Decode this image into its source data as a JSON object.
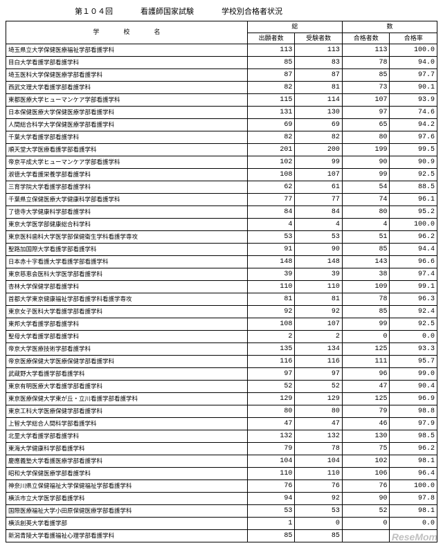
{
  "header": {
    "title1": "第１０４回",
    "title2": "看護師国家試験",
    "title3": "学校別合格者状況"
  },
  "columns": {
    "school_top": "学",
    "school_mid": "校",
    "school_name": "名",
    "group1": "総",
    "group2": "数",
    "c1": "出願者数",
    "c2": "受験者数",
    "c3": "合格者数",
    "c4": "合格率"
  },
  "rows": [
    {
      "name": "埼玉県立大学保健医療福祉学部看護学科",
      "a": "113",
      "b": "113",
      "c": "113",
      "d": "100.0"
    },
    {
      "name": "目白大学看護学部看護学科",
      "a": "85",
      "b": "83",
      "c": "78",
      "d": "94.0"
    },
    {
      "name": "埼玉医科大学保健医療学部看護学科",
      "a": "87",
      "b": "87",
      "c": "85",
      "d": "97.7"
    },
    {
      "name": "西武文理大学看護学部看護学科",
      "a": "82",
      "b": "81",
      "c": "73",
      "d": "90.1"
    },
    {
      "name": "東都医療大学ヒューマンケア学部看護学科",
      "a": "115",
      "b": "114",
      "c": "107",
      "d": "93.9"
    },
    {
      "name": "日本保健医療大学保健医療学部看護学科",
      "a": "131",
      "b": "130",
      "c": "97",
      "d": "74.6"
    },
    {
      "name": "人間総合科学大学保健医療学部看護学科",
      "a": "69",
      "b": "69",
      "c": "65",
      "d": "94.2"
    },
    {
      "name": "千葉大学看護学部看護学科",
      "a": "82",
      "b": "82",
      "c": "80",
      "d": "97.6"
    },
    {
      "name": "順天堂大学医療看護学部看護学科",
      "a": "201",
      "b": "200",
      "c": "199",
      "d": "99.5"
    },
    {
      "name": "帝京平成大学ヒューマンケア学部看護学科",
      "a": "102",
      "b": "99",
      "c": "90",
      "d": "90.9"
    },
    {
      "name": "淑徳大学看護栄養学部看護学科",
      "a": "108",
      "b": "107",
      "c": "99",
      "d": "92.5"
    },
    {
      "name": "三育学院大学看護学部看護学科",
      "a": "62",
      "b": "61",
      "c": "54",
      "d": "88.5"
    },
    {
      "name": "千葉県立保健医療大学健康科学部看護学科",
      "a": "77",
      "b": "77",
      "c": "74",
      "d": "96.1"
    },
    {
      "name": "了徳寺大学健康科学部看護学科",
      "a": "84",
      "b": "84",
      "c": "80",
      "d": "95.2"
    },
    {
      "name": "東京大学医学部健康総合科学科",
      "a": "4",
      "b": "4",
      "c": "4",
      "d": "100.0"
    },
    {
      "name": "東京医科歯科大学医学部保健衛生学科看護学専攻",
      "a": "53",
      "b": "53",
      "c": "51",
      "d": "96.2"
    },
    {
      "name": "聖路加国際大学看護学部看護学科",
      "a": "91",
      "b": "90",
      "c": "85",
      "d": "94.4"
    },
    {
      "name": "日本赤十字看護大学看護学部看護学科",
      "a": "148",
      "b": "148",
      "c": "143",
      "d": "96.6"
    },
    {
      "name": "東京慈恵会医科大学医学部看護学科",
      "a": "39",
      "b": "39",
      "c": "38",
      "d": "97.4"
    },
    {
      "name": "杏林大学保健学部看護学科",
      "a": "110",
      "b": "110",
      "c": "109",
      "d": "99.1"
    },
    {
      "name": "首都大学東京健康福祉学部看護学科看護学専攻",
      "a": "81",
      "b": "81",
      "c": "78",
      "d": "96.3"
    },
    {
      "name": "東京女子医科大学看護学部看護学科",
      "a": "92",
      "b": "92",
      "c": "85",
      "d": "92.4"
    },
    {
      "name": "東邦大学看護学部看護学科",
      "a": "108",
      "b": "107",
      "c": "99",
      "d": "92.5"
    },
    {
      "name": "聖母大学看護学部看護学科",
      "a": "2",
      "b": "2",
      "c": "0",
      "d": "0.0"
    },
    {
      "name": "帝京大学医療技術学部看護学科",
      "a": "135",
      "b": "134",
      "c": "125",
      "d": "93.3"
    },
    {
      "name": "帝京医療保健大学医療保健学部看護学科",
      "a": "116",
      "b": "116",
      "c": "111",
      "d": "95.7"
    },
    {
      "name": "武蔵野大学看護学部看護学科",
      "a": "97",
      "b": "97",
      "c": "96",
      "d": "99.0"
    },
    {
      "name": "東京有明医療大学看護学部看護学科",
      "a": "52",
      "b": "52",
      "c": "47",
      "d": "90.4"
    },
    {
      "name": "東京医療保健大学東が丘・立川看護学部看護学科",
      "a": "129",
      "b": "129",
      "c": "125",
      "d": "96.9"
    },
    {
      "name": "東京工科大学医療保健学部看護学科",
      "a": "80",
      "b": "80",
      "c": "79",
      "d": "98.8"
    },
    {
      "name": "上智大学総合人間科学部看護学科",
      "a": "47",
      "b": "47",
      "c": "46",
      "d": "97.9"
    },
    {
      "name": "北里大学看護学部看護学科",
      "a": "132",
      "b": "132",
      "c": "130",
      "d": "98.5"
    },
    {
      "name": "東海大学健康科学部看護学科",
      "a": "79",
      "b": "78",
      "c": "75",
      "d": "96.2"
    },
    {
      "name": "慶應義塾大学看護医療学部看護学科",
      "a": "104",
      "b": "104",
      "c": "102",
      "d": "98.1"
    },
    {
      "name": "昭和大学保健医療学部看護学科",
      "a": "110",
      "b": "110",
      "c": "106",
      "d": "96.4"
    },
    {
      "name": "神奈川県立保健福祉大学保健福祉学部看護学科",
      "a": "76",
      "b": "76",
      "c": "76",
      "d": "100.0"
    },
    {
      "name": "横浜市立大学医学部看護学科",
      "a": "94",
      "b": "92",
      "c": "90",
      "d": "97.8"
    },
    {
      "name": "国際医療福祉大学小田原保健医療学部看護学科",
      "a": "53",
      "b": "53",
      "c": "52",
      "d": "98.1"
    },
    {
      "name": "横浜創英大学看護学部",
      "a": "1",
      "b": "0",
      "c": "0",
      "d": "0.0"
    },
    {
      "name": "新潟青陵大学看護福祉心理学部看護学科",
      "a": "85",
      "b": "85",
      "c": "",
      "d": ""
    }
  ],
  "watermark": "ReseMom"
}
